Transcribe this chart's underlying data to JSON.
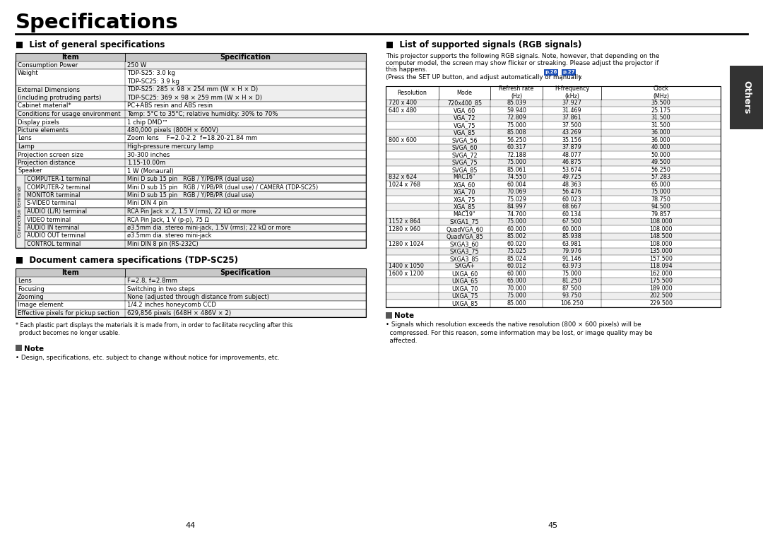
{
  "title": "Specifications",
  "bg_color": "#ffffff",
  "section1_title": "■  List of general specifications",
  "section1_rows": [
    [
      "Consumption Power",
      "250 W"
    ],
    [
      "Weight",
      "TDP-S25: 3.0 kg\nTDP-SC25: 3.9 kg"
    ],
    [
      "External Dimensions\n(including protruding parts)",
      "TDP-S25: 285 × 98 × 254 mm (W × H × D)\nTDP-SC25: 369 × 98 × 259 mm (W × H × D)"
    ],
    [
      "Cabinet material*",
      "PC+ABS resin and ABS resin"
    ],
    [
      "Conditions for usage environment",
      "Temp: 5°C to 35°C; relative humidity: 30% to 70%"
    ],
    [
      "Display pixels",
      "1 chip DMD™"
    ],
    [
      "Picture elements",
      "480,000 pixels (800H × 600V)"
    ],
    [
      "Lens",
      "Zoom lens    F=2.0-2.2  f=18.20-21.84 mm"
    ],
    [
      "Lamp",
      "High-pressure mercury lamp"
    ],
    [
      "Projection screen size",
      "30-300 inches"
    ],
    [
      "Projection distance",
      "1.15-10.00m"
    ],
    [
      "Speaker",
      "1 W (Monaural)"
    ]
  ],
  "connection_rows": [
    [
      "COMPUTER-1 terminal",
      "Mini D sub 15 pin   RGB / Y/PB/PR (dual use)"
    ],
    [
      "COMPUTER-2 terminal",
      "Mini D sub 15 pin   RGB / Y/PB/PR (dual use) / CAMERA (TDP-SC25)"
    ],
    [
      "MONITOR terminal",
      "Mini D sub 15 pin   RGB / Y/PB/PR (dual use)"
    ],
    [
      "S-VIDEO terminal",
      "Mini DIN 4 pin"
    ],
    [
      "AUDIO (L/R) terminal",
      "RCA Pin Jack × 2, 1.5 V (rms), 22 kΩ or more"
    ],
    [
      "VIDEO terminal",
      "RCA Pin Jack, 1 V (p-p), 75 Ω"
    ],
    [
      "AUDIO IN terminal",
      "ø3.5mm dia. stereo mini-jack, 1.5V (rms); 22 kΩ or more"
    ],
    [
      "AUDIO OUT terminal",
      "ø3.5mm dia. stereo mini-jack"
    ],
    [
      "CONTROL terminal",
      "Mini DIN 8 pin (RS-232C)"
    ]
  ],
  "section2_title": "■  Document camera specifications (TDP-SC25)",
  "section2_rows": [
    [
      "Lens",
      "F=2.8, f=2.8mm"
    ],
    [
      "Focusing",
      "Switching in two steps"
    ],
    [
      "Zooming",
      "None (adjusted through distance from subject)"
    ],
    [
      "Image element",
      "1/4.2 inches honeycomb CCD"
    ],
    [
      "Effective pixels for pickup section",
      "629,856 pixels (648H × 486V × 2)"
    ]
  ],
  "footnote1": "* Each plastic part displays the materials it is made from, in order to facilitate recycling after this\n  product becomes no longer usable.",
  "note1_text": "• Design, specifications, etc. subject to change without notice for improvements, etc.",
  "page_left": "44",
  "section3_title": "■  List of supported signals (RGB signals)",
  "section3_intro": [
    "This projector supports the following RGB signals. Note, however, that depending on the",
    "computer model, the screen may show flicker or streaking. Please adjust the projector if",
    "this happens."
  ],
  "section3_headers": [
    "Resolution",
    "Mode",
    "Refresh rate\n(Hz)",
    "H-frequency\n(kHz)",
    "Clock\n(MHz)"
  ],
  "section3_rows": [
    [
      "720 x 400",
      "720x400_85",
      "85.039",
      "37.927",
      "35.500"
    ],
    [
      "640 x 480",
      "VGA_60",
      "59.940",
      "31.469",
      "25.175"
    ],
    [
      "",
      "VGA_72",
      "72.809",
      "37.861",
      "31.500"
    ],
    [
      "",
      "VGA_75",
      "75.000",
      "37.500",
      "31.500"
    ],
    [
      "",
      "VGA_85",
      "85.008",
      "43.269",
      "36.000"
    ],
    [
      "800 x 600",
      "SVGA_56",
      "56.250",
      "35.156",
      "36.000"
    ],
    [
      "",
      "SVGA_60",
      "60.317",
      "37.879",
      "40.000"
    ],
    [
      "",
      "SVGA_72",
      "72.188",
      "48.077",
      "50.000"
    ],
    [
      "",
      "SVGA_75",
      "75.000",
      "46.875",
      "49.500"
    ],
    [
      "",
      "SVGA_85",
      "85.061",
      "53.674",
      "56.250"
    ],
    [
      "832 x 624",
      "MAC16\"",
      "74.550",
      "49.725",
      "57.283"
    ],
    [
      "1024 x 768",
      "XGA_60",
      "60.004",
      "48.363",
      "65.000"
    ],
    [
      "",
      "XGA_70",
      "70.069",
      "56.476",
      "75.000"
    ],
    [
      "",
      "XGA_75",
      "75.029",
      "60.023",
      "78.750"
    ],
    [
      "",
      "XGA_85",
      "84.997",
      "68.667",
      "94.500"
    ],
    [
      "",
      "MAC19\"",
      "74.700",
      "60.134",
      "79.857"
    ],
    [
      "1152 x 864",
      "SXGA1_75",
      "75.000",
      "67.500",
      "108.000"
    ],
    [
      "1280 x 960",
      "QuadVGA_60",
      "60.000",
      "60.000",
      "108.000"
    ],
    [
      "",
      "QuadVGA_85",
      "85.002",
      "85.938",
      "148.500"
    ],
    [
      "1280 x 1024",
      "SXGA3_60",
      "60.020",
      "63.981",
      "108.000"
    ],
    [
      "",
      "SXGA3_75",
      "75.025",
      "79.976",
      "135.000"
    ],
    [
      "",
      "SXGA3_85",
      "85.024",
      "91.146",
      "157.500"
    ],
    [
      "1400 x 1050",
      "SXGA+",
      "60.012",
      "63.973",
      "118.094"
    ],
    [
      "1600 x 1200",
      "UXGA_60",
      "60.000",
      "75.000",
      "162.000"
    ],
    [
      "",
      "UXGA_65",
      "65.000",
      "81.250",
      "175.500"
    ],
    [
      "",
      "UXGA_70",
      "70.000",
      "87.500",
      "189.000"
    ],
    [
      "",
      "UXGA_75",
      "75.000",
      "93.750",
      "202.500"
    ],
    [
      "",
      "UXGA_85",
      "85.000",
      "106.250",
      "229.500"
    ]
  ],
  "note2_text": "• Signals which resolution exceeds the native resolution (800 × 600 pixels) will be\n  compressed. For this reason, some information may be lost, or image quality may be\n  affected.",
  "page_left_num": "44",
  "page_right_num": "45",
  "others_tab": "Others",
  "tab_color": "#333333",
  "header_gray": "#c8c8c8",
  "line_color": "#000000",
  "p26_color": "#1a4db5",
  "p27_color": "#1a4db5"
}
